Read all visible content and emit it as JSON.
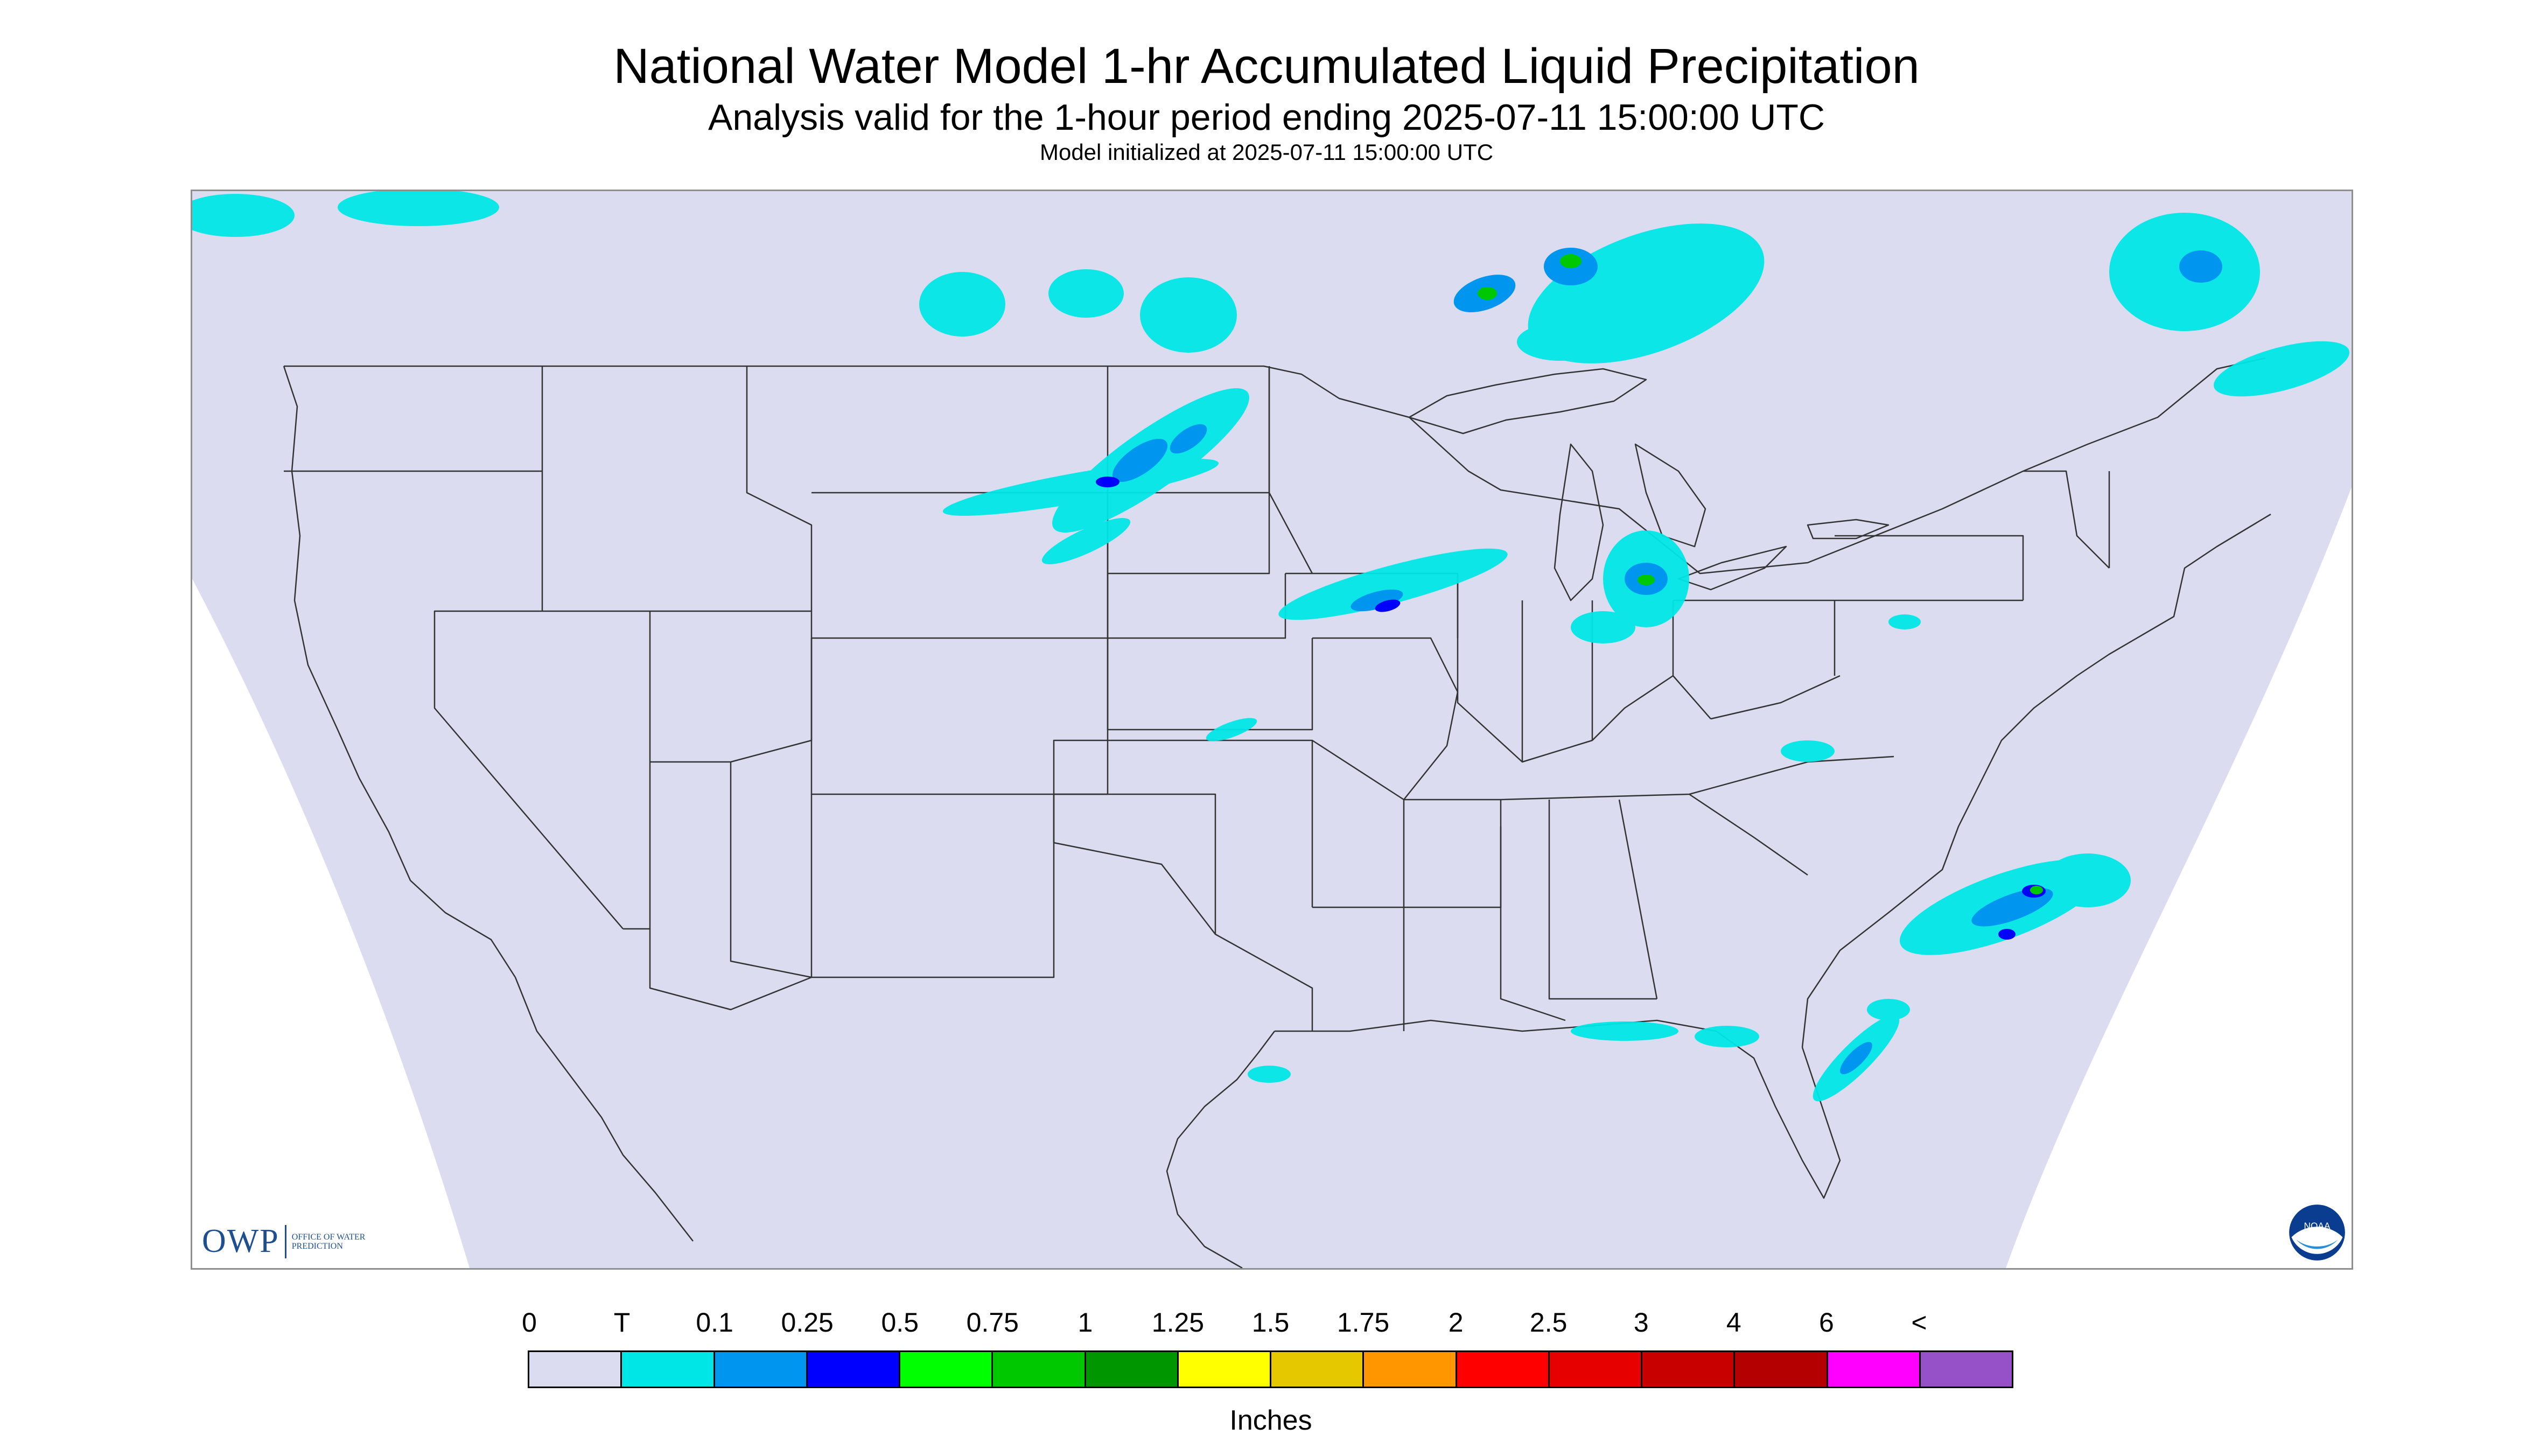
{
  "header": {
    "title": "National Water Model 1-hr Accumulated Liquid Precipitation",
    "subtitle": "Analysis valid for the 1-hour period ending 2025-07-11 15:00:00 UTC",
    "init_line": "Model initialized at 2025-07-11 15:00:00 UTC"
  },
  "map": {
    "background_color": "#dcdcf0",
    "outside_domain_color": "#ffffff",
    "boundary_color": "#333333"
  },
  "logos": {
    "owp_text": "OWP",
    "owp_subtext": "OFFICE OF WATER PREDICTION",
    "noaa_text": "NOAA"
  },
  "legend": {
    "unit": "Inches",
    "labels": [
      "0",
      "T",
      "0.1",
      "0.25",
      "0.5",
      "0.75",
      "1",
      "1.25",
      "1.5",
      "1.75",
      "2",
      "2.5",
      "3",
      "4",
      "6",
      "<"
    ],
    "colors": [
      "#dcdcf0",
      "#00e6e6",
      "#0096f0",
      "#0000ff",
      "#00ff00",
      "#00c800",
      "#009600",
      "#ffff00",
      "#e6c800",
      "#ff9600",
      "#ff0000",
      "#e60000",
      "#c80000",
      "#b40000",
      "#ff00ff",
      "#9650c8"
    ]
  }
}
